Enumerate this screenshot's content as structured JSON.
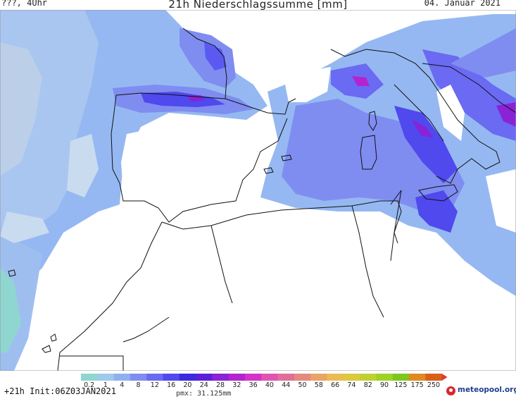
{
  "header": {
    "location_time": "???, 4Uhr",
    "title": "21h Niederschlagssumme [mm]",
    "date": "04. Januar 2021"
  },
  "legend": {
    "labels": [
      "0.2",
      "1",
      "4",
      "8",
      "12",
      "16",
      "20",
      "24",
      "28",
      "32",
      "36",
      "40",
      "44",
      "50",
      "58",
      "66",
      "74",
      "82",
      "90",
      "125",
      "175",
      "250"
    ],
    "colors": [
      "#8fd6d0",
      "#9ec9ea",
      "#8fb0ef",
      "#7f8df0",
      "#6a6af2",
      "#4f49ee",
      "#3b2ae0",
      "#5a20d9",
      "#8a22d6",
      "#b522d0",
      "#d433c8",
      "#e054b0",
      "#e0709a",
      "#e48a80",
      "#e9a466",
      "#ecbb53",
      "#dcc93e",
      "#bfd132",
      "#9dd227",
      "#7cc81d",
      "#e08a22",
      "#d7611a"
    ],
    "arrow_color": "#e23a2b"
  },
  "footer": {
    "run": "+21h Init:06Z03JAN2021",
    "pmx": "pmx: 31.125mm",
    "brand": "meteopool.org"
  }
}
